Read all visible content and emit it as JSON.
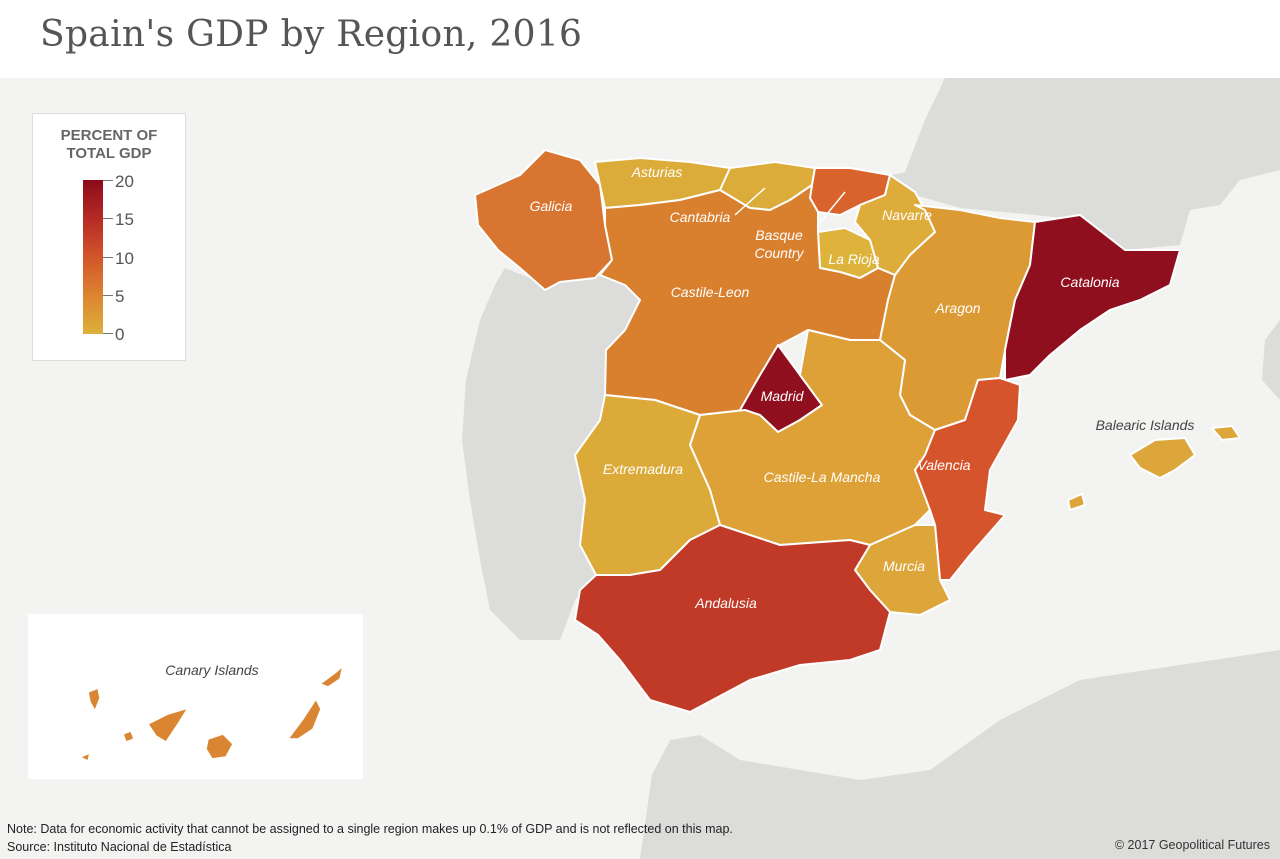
{
  "title": "Spain's GDP by Region, 2016",
  "legend": {
    "heading_line1": "PERCENT OF",
    "heading_line2": "TOTAL GDP",
    "ticks": [
      "20",
      "15",
      "10",
      "5",
      "0"
    ],
    "scale_min": 0,
    "scale_max": 20,
    "colors": [
      "#ddb13a",
      "#dc8430",
      "#d2552b",
      "#b62a25",
      "#8b0a1a"
    ]
  },
  "regions": {
    "galicia": "Galicia",
    "asturias": "Asturias",
    "cantabria": "Cantabria",
    "basque_line1": "Basque",
    "basque_line2": "Country",
    "navarre": "Navarre",
    "la_rioja": "La Rioja",
    "castile_leon": "Castile-Leon",
    "aragon": "Aragon",
    "catalonia": "Catalonia",
    "madrid": "Madrid",
    "extremadura": "Extremadura",
    "castile_la_mancha": "Castile-La Mancha",
    "valencia": "Valencia",
    "murcia": "Murcia",
    "andalusia": "Andalusia",
    "balearic": "Balearic Islands",
    "canary": "Canary Islands"
  },
  "note": "Note: Data for economic activity that cannot be assigned to a single region makes up 0.1% of GDP and is not reflected on this map.",
  "source": "Source: Instituto Nacional de Estadística",
  "credit": "© 2017 Geopolitical Futures",
  "colors": {
    "land": "#dcdcda",
    "sea": "#f3f3f2",
    "madrid": "#8f0f1f",
    "catalonia": "#8f0f1f",
    "andalusia": "#c03a27",
    "valencia": "#d6542b",
    "basque": "#d9632c",
    "galicia": "#d87530",
    "castile_leon": "#d9802f",
    "aragon": "#dc9a35",
    "castile_la_mancha": "#dea137",
    "extremadura": "#dcaa38",
    "asturias": "#dcac3a",
    "cantabria": "#dcac3a",
    "navarre": "#ddac3a",
    "la_rioja": "#ddb33c",
    "murcia": "#dca63a",
    "balearic": "#dca63a",
    "canary": "#d98532"
  }
}
